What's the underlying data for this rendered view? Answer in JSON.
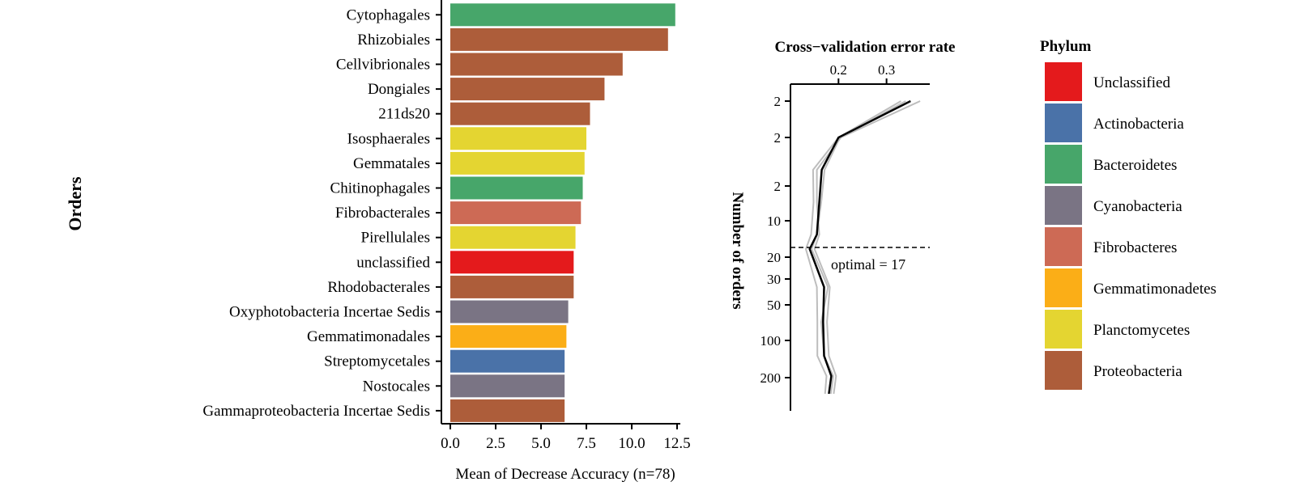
{
  "colors": {
    "Unclassified": "#e41a1c",
    "Actinobacteria": "#4a72a8",
    "Bacteroidetes": "#47a66a",
    "Cyanobacteria": "#7a7484",
    "Fibrobacteres": "#cd6a55",
    "Gemmatimonadetes": "#fbae17",
    "Planctomycetes": "#e4d531",
    "Proteobacteria": "#ad5d3a"
  },
  "chart_data": [
    {
      "type": "bar",
      "orientation": "horizontal",
      "ylabel": "Orders",
      "xlabel": "Mean of Decrease Accuracy (n=78)",
      "xlim": [
        0,
        13.0
      ],
      "xticks": [
        "0.0",
        "2.5",
        "5.0",
        "7.5",
        "10.0",
        "12.5"
      ],
      "categories": [
        "Cytophagales",
        "Rhizobiales",
        "Cellvibrionales",
        "Dongiales",
        "211ds20",
        "Isosphaerales",
        "Gemmatales",
        "Chitinophagales",
        "Fibrobacterales",
        "Pirellulales",
        "unclassified",
        "Rhodobacterales",
        "Oxyphotobacteria Incertae Sedis",
        "Gemmatimonadales",
        "Streptomycetales",
        "Nostocales",
        "Gammaproteobacteria Incertae Sedis"
      ],
      "values": [
        12.4,
        12.0,
        9.5,
        8.5,
        7.7,
        7.5,
        7.4,
        7.3,
        7.2,
        6.9,
        6.8,
        6.8,
        6.5,
        6.4,
        6.3,
        6.3,
        6.3
      ],
      "phylum": [
        "Bacteroidetes",
        "Proteobacteria",
        "Proteobacteria",
        "Proteobacteria",
        "Proteobacteria",
        "Planctomycetes",
        "Planctomycetes",
        "Bacteroidetes",
        "Fibrobacteres",
        "Planctomycetes",
        "Unclassified",
        "Proteobacteria",
        "Cyanobacteria",
        "Gemmatimonadetes",
        "Actinobacteria",
        "Cyanobacteria",
        "Proteobacteria"
      ]
    },
    {
      "type": "line",
      "title": "Cross−validation error rate",
      "ylabel": "Number of orders",
      "xticks": [
        "0.2",
        "0.3"
      ],
      "xlim": [
        0.1,
        0.39
      ],
      "yticks": [
        "2",
        "2",
        "2",
        "10",
        "20",
        "30",
        "50",
        "100",
        "200"
      ],
      "y_scale": "log",
      "annotation": "optimal = 17",
      "optimal": 17,
      "x": [
        0.35,
        0.2,
        0.165,
        0.16,
        0.155,
        0.14,
        0.17,
        0.168,
        0.17,
        0.185,
        0.18
      ],
      "replicate_curves": 3
    }
  ],
  "legend": {
    "title": "Phylum",
    "items": [
      {
        "label": "Unclassified",
        "color": "#e41a1c"
      },
      {
        "label": "Actinobacteria",
        "color": "#4a72a8"
      },
      {
        "label": "Bacteroidetes",
        "color": "#47a66a"
      },
      {
        "label": "Cyanobacteria",
        "color": "#7a7484"
      },
      {
        "label": "Fibrobacteres",
        "color": "#cd6a55"
      },
      {
        "label": "Gemmatimonadetes",
        "color": "#fbae17"
      },
      {
        "label": "Planctomycetes",
        "color": "#e4d531"
      },
      {
        "label": "Proteobacteria",
        "color": "#ad5d3a"
      }
    ]
  }
}
